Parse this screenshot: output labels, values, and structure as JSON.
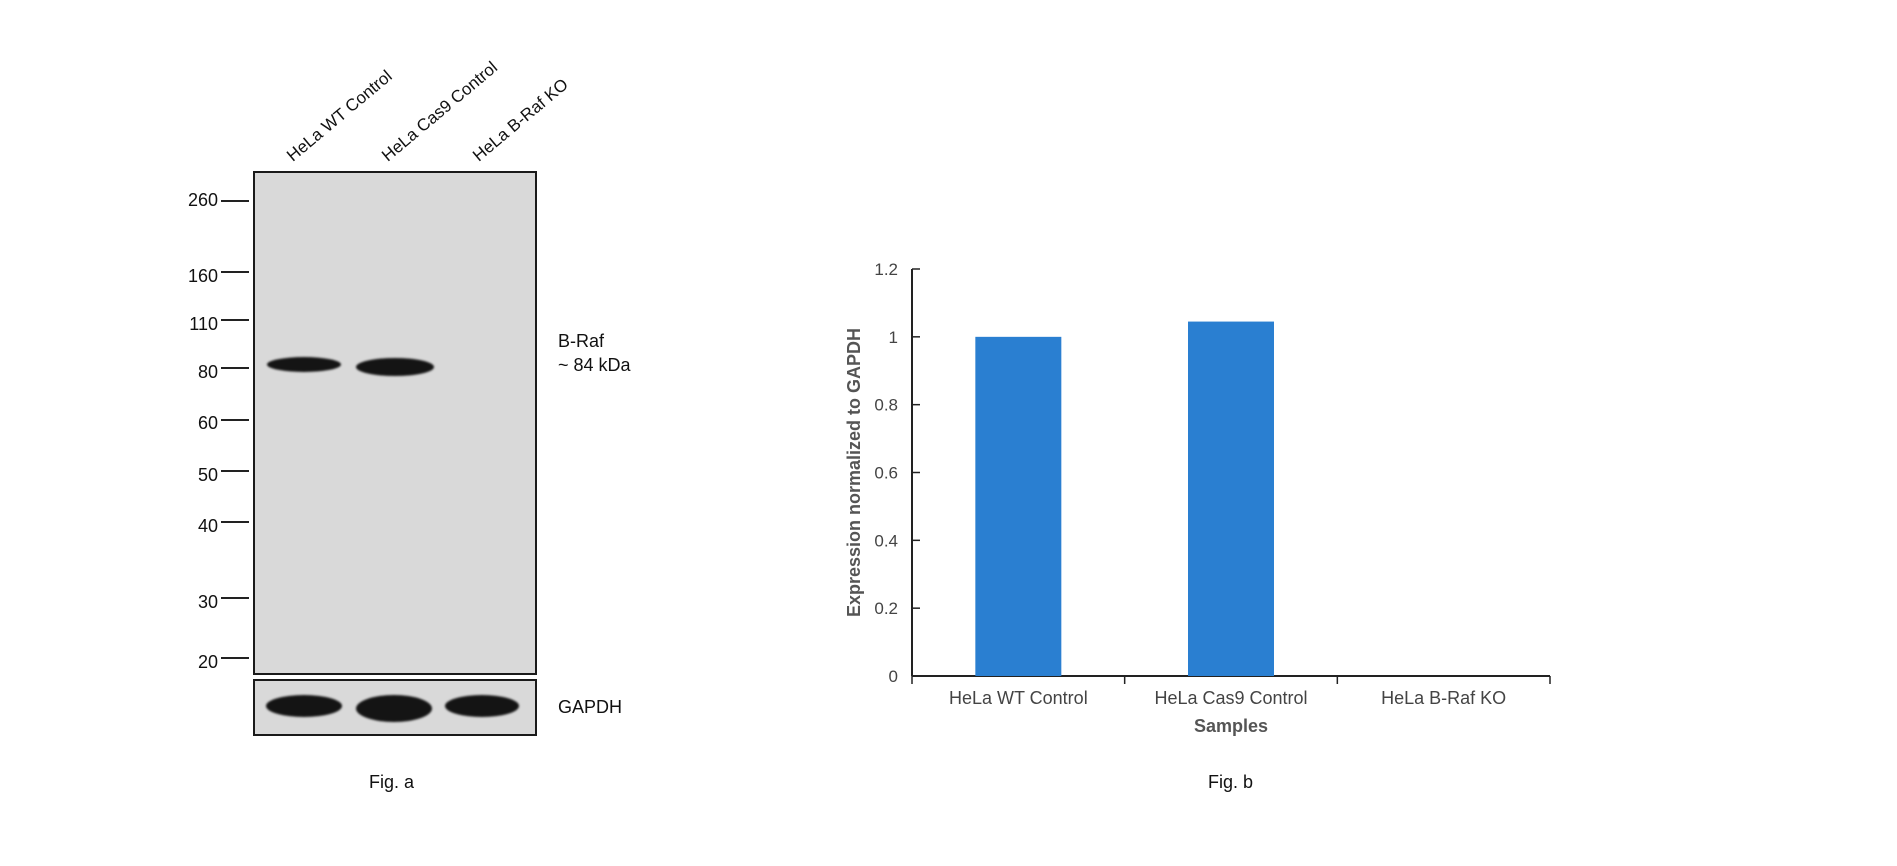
{
  "western_blot": {
    "lanes": [
      "HeLa WT Control",
      "HeLa Cas9 Control",
      "HeLa B-Raf KO"
    ],
    "mw_markers": [
      "260",
      "160",
      "110",
      "80",
      "60",
      "50",
      "40",
      "30",
      "20"
    ],
    "target": {
      "name": "B-Raf",
      "size": "~ 84 kDa",
      "band_present": [
        true,
        true,
        false
      ]
    },
    "loading_control": {
      "name": "GAPDH",
      "band_present": [
        true,
        true,
        true
      ]
    },
    "caption": "Fig. a"
  },
  "chart_data": {
    "type": "bar",
    "categories": [
      "HeLa WT Control",
      "HeLa Cas9 Control",
      "HeLa B-Raf KO"
    ],
    "values": [
      1.0,
      1.045,
      0.0
    ],
    "xlabel": "Samples",
    "ylabel": "Expression normalized to GAPDH",
    "ylim": [
      0,
      1.2
    ],
    "yticks": [
      "0",
      "0.2",
      "0.4",
      "0.6",
      "0.8",
      "1",
      "1.2"
    ],
    "grid": false,
    "legend": "none",
    "bar_color": "#2a7fd1",
    "caption": "Fig. b"
  }
}
